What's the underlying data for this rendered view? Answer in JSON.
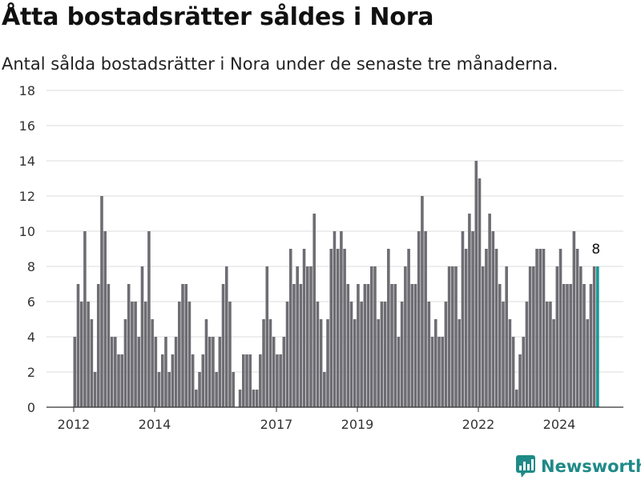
{
  "header": {
    "title": "Åtta bostadsrätter såldes i Nora",
    "subtitle": "Antal sålda bostadsrätter i Nora under de senaste tre månaderna."
  },
  "logo": {
    "text": "Newsworthy",
    "icon": "newsworthy-logo-icon"
  },
  "colors": {
    "bar": "#6e6d73",
    "highlight": "#1a9a94",
    "grid": "#dcdcdc"
  },
  "chart_data": {
    "type": "bar",
    "yticks": [
      0,
      2,
      4,
      6,
      8,
      10,
      12,
      14,
      16,
      18
    ],
    "ylim": [
      0,
      18
    ],
    "xticks": [
      "2012",
      "2014",
      "2017",
      "2019",
      "2022",
      "2024"
    ],
    "grid": true,
    "highlight_label": "8",
    "values": [
      4,
      7,
      6,
      10,
      6,
      5,
      2,
      7,
      12,
      10,
      7,
      4,
      4,
      3,
      3,
      5,
      7,
      6,
      6,
      4,
      8,
      6,
      10,
      5,
      4,
      2,
      3,
      4,
      2,
      3,
      4,
      6,
      7,
      7,
      6,
      3,
      1,
      2,
      3,
      5,
      4,
      4,
      2,
      4,
      7,
      8,
      6,
      2,
      0,
      1,
      3,
      3,
      3,
      1,
      1,
      3,
      5,
      8,
      5,
      4,
      3,
      3,
      4,
      6,
      9,
      7,
      8,
      7,
      9,
      8,
      8,
      11,
      6,
      5,
      2,
      5,
      9,
      10,
      9,
      10,
      9,
      7,
      6,
      5,
      7,
      6,
      7,
      7,
      8,
      8,
      5,
      6,
      6,
      9,
      7,
      7,
      4,
      6,
      8,
      9,
      7,
      7,
      10,
      12,
      10,
      6,
      4,
      5,
      4,
      4,
      6,
      8,
      8,
      8,
      5,
      10,
      9,
      11,
      10,
      14,
      13,
      8,
      9,
      11,
      10,
      9,
      7,
      6,
      8,
      5,
      4,
      1,
      3,
      4,
      6,
      8,
      8,
      9,
      9,
      9,
      6,
      6,
      5,
      8,
      9,
      7,
      7,
      7,
      10,
      9,
      8,
      7,
      5,
      7,
      8,
      8
    ]
  }
}
